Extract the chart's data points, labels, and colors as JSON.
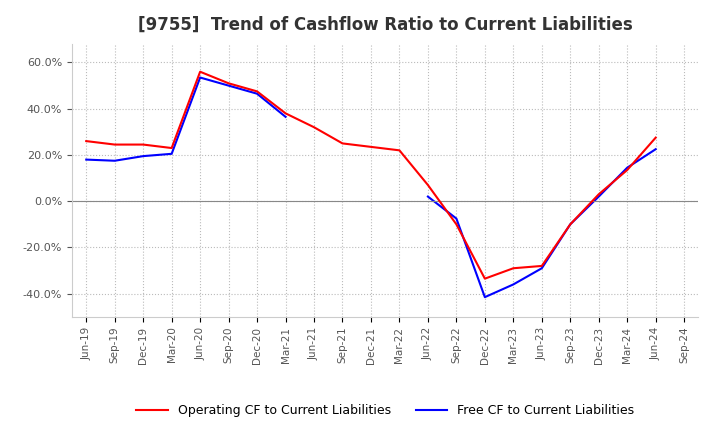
{
  "title": "[9755]  Trend of Cashflow Ratio to Current Liabilities",
  "x_labels": [
    "Jun-19",
    "Sep-19",
    "Dec-19",
    "Mar-20",
    "Jun-20",
    "Sep-20",
    "Dec-20",
    "Mar-21",
    "Jun-21",
    "Sep-21",
    "Dec-21",
    "Mar-22",
    "Jun-22",
    "Sep-22",
    "Dec-22",
    "Mar-23",
    "Jun-23",
    "Sep-23",
    "Dec-23",
    "Mar-24",
    "Jun-24",
    "Sep-24"
  ],
  "operating_cf": [
    26.0,
    24.5,
    24.5,
    23.0,
    56.0,
    51.0,
    47.5,
    38.0,
    32.0,
    25.0,
    23.5,
    22.0,
    7.0,
    -10.0,
    -33.5,
    -29.0,
    -28.0,
    -10.0,
    3.0,
    13.5,
    27.5,
    null
  ],
  "free_cf": [
    18.0,
    17.5,
    19.5,
    20.5,
    53.5,
    50.0,
    46.5,
    36.5,
    null,
    null,
    null,
    null,
    2.0,
    -7.5,
    -41.5,
    -36.0,
    -29.0,
    -10.0,
    2.0,
    14.5,
    22.5,
    null
  ],
  "operating_color": "#ff0000",
  "free_color": "#0000ff",
  "ylim": [
    -50,
    68
  ],
  "yticks": [
    -40.0,
    -20.0,
    0.0,
    20.0,
    40.0,
    60.0
  ],
  "background_color": "#ffffff",
  "grid_color": "#bbbbbb",
  "title_fontsize": 12,
  "legend_operating": "Operating CF to Current Liabilities",
  "legend_free": "Free CF to Current Liabilities"
}
